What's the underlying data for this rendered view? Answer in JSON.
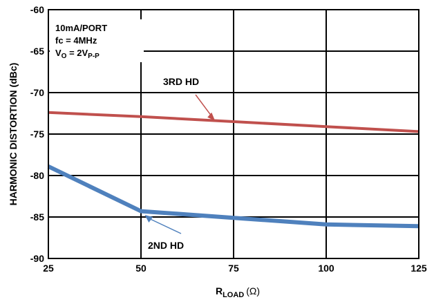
{
  "chart_data": {
    "type": "line",
    "xlabel": {
      "main": "R",
      "sub": "LOAD",
      "unit": "(Ω)"
    },
    "ylabel": "HARMONIC DISTORTION (dBc)",
    "x_ticks": [
      "25",
      "50",
      "75",
      "100",
      "125"
    ],
    "y_ticks": [
      "-60",
      "-65",
      "-70",
      "-75",
      "-80",
      "-85",
      "-90"
    ],
    "xlim": [
      25,
      125
    ],
    "ylim": [
      -90,
      -60
    ],
    "grid": true,
    "conditions": {
      "line1": "10mA/PORT",
      "line2": "fc = 4MHz",
      "line3_main": "V",
      "line3_sub": "O",
      "line3_mid": " = 2V",
      "line3_sub2": "P-P"
    },
    "series": [
      {
        "name": "3RD HD",
        "color": "#c0504d",
        "x": [
          25,
          50,
          75,
          100,
          125
        ],
        "y": [
          -72.4,
          -72.9,
          -73.5,
          -74.1,
          -74.7
        ],
        "label_anchor": {
          "x": 70,
          "y": -73.4
        }
      },
      {
        "name": "2ND HD",
        "color": "#4f81bd",
        "x": [
          25,
          50,
          75,
          100,
          125
        ],
        "y": [
          -78.9,
          -84.3,
          -85.1,
          -85.9,
          -86.1
        ],
        "label_anchor": {
          "x": 51,
          "y": -84.5
        }
      }
    ]
  }
}
